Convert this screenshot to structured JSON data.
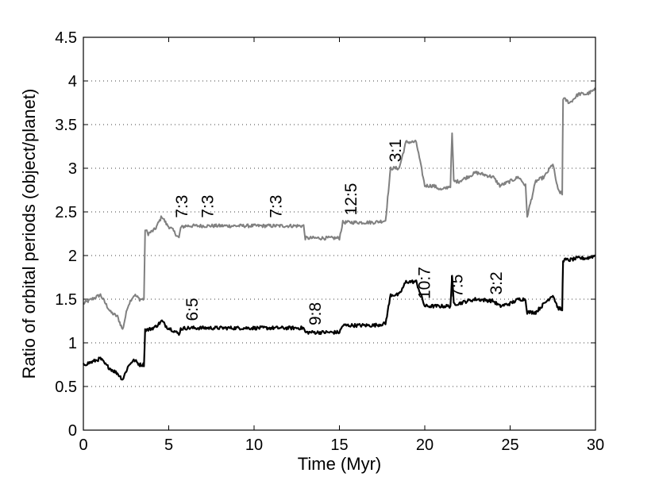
{
  "chart_data": {
    "type": "line",
    "xlabel": "Time (Myr)",
    "ylabel": "Ratio of orbital periods (object/planet)",
    "xlim": [
      0,
      30
    ],
    "ylim": [
      0,
      4.5
    ],
    "xticks": [
      0,
      5,
      10,
      15,
      20,
      25,
      30
    ],
    "xtick_labels": [
      "0",
      "5",
      "10",
      "15",
      "20",
      "25",
      "30"
    ],
    "yticks": [
      0,
      0.5,
      1,
      1.5,
      2,
      2.5,
      3,
      3.5,
      4,
      4.5
    ],
    "ytick_labels": [
      "0",
      "0.5",
      "1",
      "1.5",
      "2",
      "2.5",
      "3",
      "3.5",
      "4",
      "4.5"
    ],
    "grid": "horizontal dotted",
    "series": [
      {
        "color": "#808080",
        "x": [
          0,
          0.5,
          1,
          1.3,
          1.6,
          2,
          2.3,
          2.6,
          2.8,
          3,
          3.3,
          3.55,
          3.62,
          3.8,
          4.2,
          4.6,
          4.9,
          5.2,
          5.6,
          5.7,
          6,
          7,
          8,
          9,
          10,
          11,
          12,
          12.9,
          13,
          14,
          15,
          15.2,
          15.5,
          16,
          17,
          17.7,
          18,
          18.5,
          18.9,
          19.5,
          20,
          20.5,
          21,
          21.5,
          21.6,
          21.7,
          22,
          22.5,
          23,
          24,
          24.4,
          25,
          25.5,
          25.9,
          26,
          26.5,
          27,
          27.5,
          27.8,
          28.05,
          28.1,
          28.5,
          29,
          29.5,
          30
        ],
        "y": [
          1.45,
          1.5,
          1.55,
          1.45,
          1.35,
          1.3,
          1.15,
          1.42,
          1.5,
          1.55,
          1.5,
          1.5,
          2.3,
          2.25,
          2.3,
          2.45,
          2.35,
          2.3,
          2.2,
          2.32,
          2.34,
          2.34,
          2.34,
          2.34,
          2.34,
          2.34,
          2.34,
          2.34,
          2.2,
          2.2,
          2.2,
          2.38,
          2.38,
          2.38,
          2.38,
          2.4,
          3.0,
          3.0,
          3.3,
          3.3,
          2.8,
          2.8,
          2.75,
          2.8,
          3.4,
          2.85,
          2.85,
          2.9,
          2.95,
          2.9,
          2.8,
          2.85,
          2.9,
          2.8,
          2.45,
          2.85,
          2.9,
          3.05,
          2.75,
          2.7,
          3.8,
          3.75,
          3.85,
          3.85,
          3.9
        ]
      },
      {
        "color": "#000000",
        "x": [
          0,
          0.5,
          1,
          1.3,
          1.6,
          2,
          2.3,
          2.6,
          2.8,
          3,
          3.3,
          3.55,
          3.62,
          3.8,
          4.2,
          4.6,
          4.9,
          5.2,
          5.6,
          5.7,
          6,
          7,
          8,
          9,
          10,
          11,
          12,
          12.9,
          13,
          14,
          15,
          15.2,
          15.5,
          16,
          17,
          17.7,
          18,
          18.5,
          18.9,
          19.5,
          20,
          20.5,
          21,
          21.5,
          21.6,
          21.7,
          22,
          22.5,
          23,
          24,
          24.4,
          25,
          25.5,
          25.9,
          26,
          26.5,
          27,
          27.5,
          27.8,
          28.05,
          28.1,
          28.5,
          29,
          29.5,
          30
        ],
        "y": [
          0.75,
          0.78,
          0.82,
          0.75,
          0.7,
          0.65,
          0.58,
          0.72,
          0.78,
          0.8,
          0.75,
          0.75,
          1.15,
          1.15,
          1.18,
          1.25,
          1.18,
          1.15,
          1.1,
          1.16,
          1.17,
          1.17,
          1.17,
          1.17,
          1.17,
          1.17,
          1.17,
          1.17,
          1.12,
          1.12,
          1.12,
          1.2,
          1.2,
          1.2,
          1.2,
          1.22,
          1.55,
          1.55,
          1.7,
          1.7,
          1.42,
          1.42,
          1.42,
          1.42,
          1.75,
          1.45,
          1.45,
          1.48,
          1.5,
          1.48,
          1.42,
          1.45,
          1.5,
          1.5,
          1.35,
          1.35,
          1.45,
          1.55,
          1.4,
          1.38,
          1.95,
          1.95,
          1.97,
          1.97,
          2.0
        ]
      }
    ],
    "annotations": [
      {
        "text": "7:3",
        "x": 6.1,
        "y": 2.43
      },
      {
        "text": "7:3",
        "x": 7.6,
        "y": 2.43
      },
      {
        "text": "7:3",
        "x": 11.6,
        "y": 2.43
      },
      {
        "text": "12:5",
        "x": 16.0,
        "y": 2.46
      },
      {
        "text": "3:1",
        "x": 18.6,
        "y": 3.07
      },
      {
        "text": "6:5",
        "x": 6.7,
        "y": 1.25
      },
      {
        "text": "9:8",
        "x": 13.9,
        "y": 1.2
      },
      {
        "text": "10:7",
        "x": 20.3,
        "y": 1.5
      },
      {
        "text": "7:5",
        "x": 22.2,
        "y": 1.52
      },
      {
        "text": "3:2",
        "x": 24.5,
        "y": 1.55
      }
    ]
  }
}
